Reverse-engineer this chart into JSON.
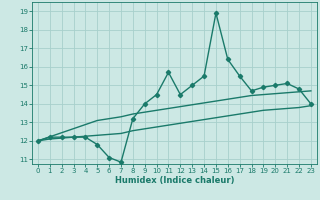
{
  "x": [
    0,
    1,
    2,
    3,
    4,
    5,
    6,
    7,
    8,
    9,
    10,
    11,
    12,
    13,
    14,
    15,
    16,
    17,
    18,
    19,
    20,
    21,
    22,
    23
  ],
  "y_main": [
    12.0,
    12.2,
    12.2,
    12.2,
    12.2,
    11.8,
    11.1,
    10.85,
    13.2,
    14.0,
    14.5,
    15.7,
    14.5,
    15.0,
    15.5,
    18.9,
    16.4,
    15.5,
    14.7,
    14.9,
    15.0,
    15.1,
    14.8,
    14.0
  ],
  "y_trend_upper": [
    12.0,
    12.22,
    12.44,
    12.66,
    12.88,
    13.1,
    13.2,
    13.3,
    13.45,
    13.55,
    13.65,
    13.75,
    13.85,
    13.95,
    14.05,
    14.15,
    14.25,
    14.35,
    14.45,
    14.5,
    14.55,
    14.6,
    14.65,
    14.7
  ],
  "y_trend_lower": [
    12.0,
    12.1,
    12.15,
    12.2,
    12.25,
    12.3,
    12.35,
    12.4,
    12.55,
    12.65,
    12.75,
    12.85,
    12.95,
    13.05,
    13.15,
    13.25,
    13.35,
    13.45,
    13.55,
    13.65,
    13.7,
    13.75,
    13.8,
    13.9
  ],
  "xlim": [
    -0.5,
    23.5
  ],
  "ylim": [
    10.75,
    19.5
  ],
  "yticks": [
    11,
    12,
    13,
    14,
    15,
    16,
    17,
    18,
    19
  ],
  "xticks": [
    0,
    1,
    2,
    3,
    4,
    5,
    6,
    7,
    8,
    9,
    10,
    11,
    12,
    13,
    14,
    15,
    16,
    17,
    18,
    19,
    20,
    21,
    22,
    23
  ],
  "xlabel": "Humidex (Indice chaleur)",
  "line_color": "#1a7a6a",
  "bg_color": "#cce8e4",
  "grid_color": "#a8d0cc",
  "marker": "D",
  "marker_size": 2.2,
  "line_width": 1.0,
  "tick_fontsize": 5.0,
  "xlabel_fontsize": 6.0
}
